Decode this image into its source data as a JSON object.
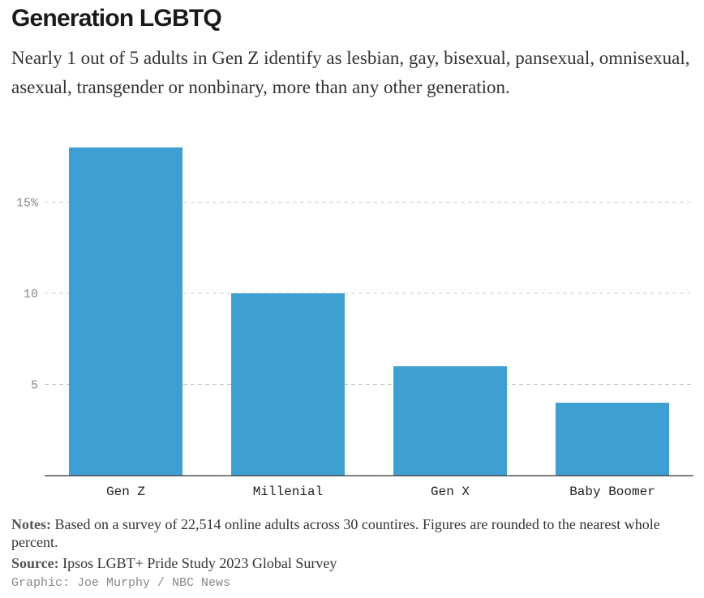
{
  "header": {
    "title": "Generation LGBTQ",
    "subtitle": "Nearly 1 out of 5 adults in Gen Z identify as lesbian, gay, bisexual, pansexual, omnisexual, asexual, transgender or nonbinary, more than any other generation."
  },
  "chart_data": {
    "type": "bar",
    "title": "",
    "xlabel": "",
    "ylabel": "",
    "categories": [
      "Gen Z",
      "Millenial",
      "Gen X",
      "Baby Boomer"
    ],
    "values": [
      18,
      10,
      6,
      4
    ],
    "ylim": [
      0,
      18
    ],
    "yticks": [
      {
        "value": 5,
        "label": "5"
      },
      {
        "value": 10,
        "label": "10"
      },
      {
        "value": 15,
        "label": "15%"
      }
    ],
    "grid": true,
    "bar_color": "#3e9fd3",
    "grid_color": "#cccccc",
    "axis_color": "#333333"
  },
  "footer": {
    "notes_label": "Notes:",
    "notes_text": " Based on a survey of 22,514 online adults across 30 countires. Figures are rounded to the nearest whole percent.",
    "source_label": "Source:",
    "source_text": " Ipsos LGBT+ Pride Study 2023 Global Survey",
    "credit": "Graphic: Joe Murphy / NBC News"
  }
}
